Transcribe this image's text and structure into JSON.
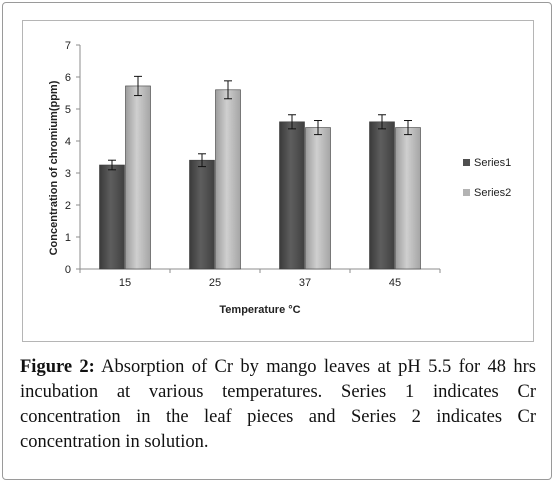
{
  "chart_data": {
    "type": "bar",
    "title": "",
    "xlabel": "Temperature °C",
    "ylabel": "Concentration of chromium(ppm)",
    "categories": [
      "15",
      "25",
      "37",
      "45"
    ],
    "ylim": [
      0,
      7
    ],
    "yticks": [
      0,
      1,
      2,
      3,
      4,
      5,
      6,
      7
    ],
    "grid": false,
    "legend_position": "right",
    "series": [
      {
        "name": "Series1",
        "color": "#4f4f4f",
        "values": [
          3.25,
          3.4,
          4.6,
          4.6
        ],
        "errors": [
          0.15,
          0.2,
          0.22,
          0.22
        ]
      },
      {
        "name": "Series2",
        "color": "#b3b3b3",
        "values": [
          5.72,
          5.6,
          4.42,
          4.42
        ],
        "errors": [
          0.3,
          0.28,
          0.22,
          0.22
        ]
      }
    ]
  },
  "caption": {
    "lead": "Figure 2:",
    "text": " Absorption of Cr by mango leaves at pH 5.5 for 48 hrs incubation at various temperatures. Series 1 indicates Cr concentration in the leaf pieces and Series 2 indicates Cr concentration in solution."
  }
}
